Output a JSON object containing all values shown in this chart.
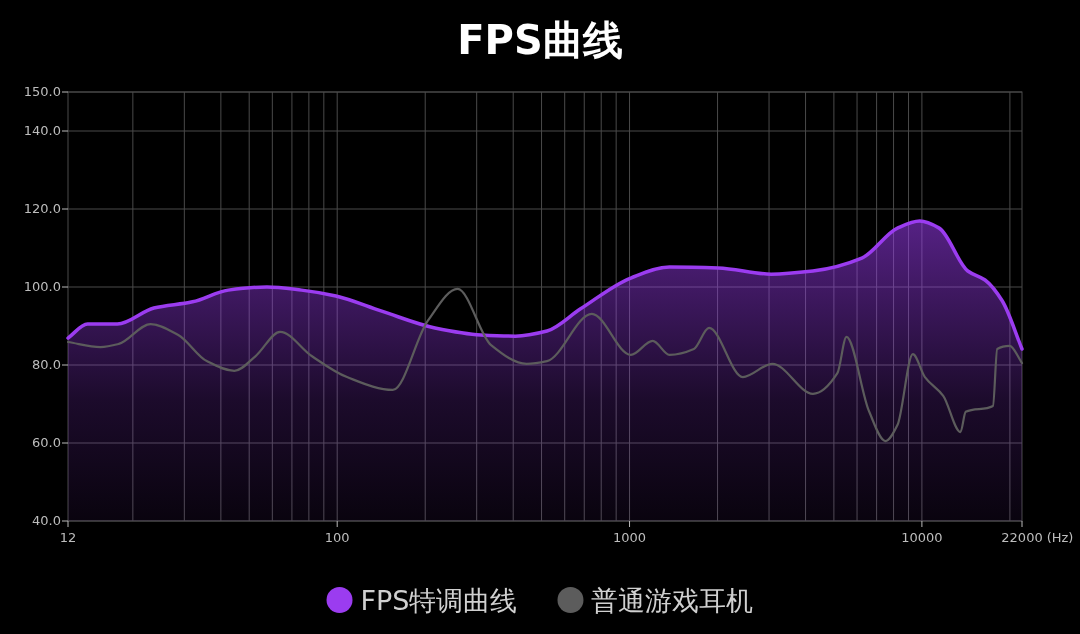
{
  "chart_data": {
    "type": "line",
    "title": "FPS曲线",
    "xlabel": "(Hz)",
    "log": "x",
    "grid": true,
    "legend": "bottom",
    "marker": "none",
    "line_style": "solid",
    "xlim": [
      12,
      22000
    ],
    "xticks": [
      12,
      100,
      1000,
      10000,
      22000
    ],
    "ylim": [
      40,
      150
    ],
    "yticks": [
      {
        "value": 40,
        "label": "40.0"
      },
      {
        "value": 60,
        "label": "60.0"
      },
      {
        "value": 80,
        "label": "80.0"
      },
      {
        "value": 100,
        "label": "100.0"
      },
      {
        "value": 120,
        "label": "120.0"
      },
      {
        "value": 140,
        "label": "140.0"
      },
      {
        "value": 150,
        "label": "150.0"
      }
    ],
    "series": [
      {
        "name": "FPS特调曲线",
        "type": "area",
        "color": "#9b3cf0",
        "x": [
          12,
          14,
          17.7,
          23.6,
          32,
          42.4,
          57.5,
          75.5,
          99,
          142,
          216,
          310,
          407,
          522,
          680,
          1010,
          1370,
          2010,
          3050,
          4240,
          6230,
          8250,
          9840,
          11460,
          14350,
          16440,
          18840,
          22000
        ],
        "values": [
          86.9,
          90.5,
          90.5,
          94.6,
          96.2,
          99.2,
          100,
          99.2,
          97.7,
          93.8,
          89.5,
          87.7,
          87.4,
          88.7,
          94.4,
          102.3,
          105.1,
          104.9,
          103.3,
          104.1,
          107.4,
          115.1,
          116.9,
          115.1,
          104.1,
          101.8,
          96.4,
          84.1
        ]
      },
      {
        "name": "普通游戏耳机",
        "color": "#5c5c5c",
        "x": [
          12,
          15.5,
          17.9,
          23,
          28.6,
          35.8,
          44.5,
          52.6,
          63.8,
          81.8,
          108,
          155,
          204,
          258,
          336,
          445,
          522,
          743,
          1010,
          1200,
          1370,
          1660,
          1870,
          2440,
          3080,
          4240,
          5140,
          5520,
          6590,
          7500,
          8250,
          9310,
          10240,
          11830,
          13550,
          14120,
          17500,
          18100,
          19950,
          22000
        ],
        "values": [
          85.9,
          84.6,
          85.4,
          90.5,
          87.7,
          81,
          78.5,
          82.3,
          88.5,
          82.3,
          76.9,
          73.6,
          91.3,
          99.5,
          85.1,
          80.3,
          81,
          93.1,
          82.6,
          86.2,
          82.6,
          84.1,
          89.5,
          76.9,
          80.3,
          72.6,
          77.9,
          87.2,
          68.2,
          60.5,
          64.6,
          82.8,
          76.9,
          72.1,
          62.8,
          68,
          69.5,
          84.1,
          84.9,
          80.5
        ]
      }
    ]
  }
}
